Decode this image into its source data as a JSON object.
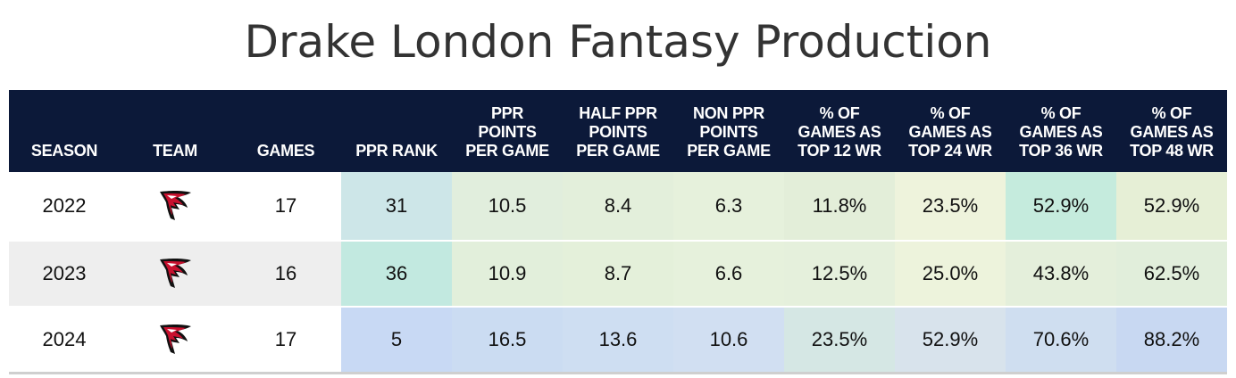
{
  "title": "Drake London Fantasy Production",
  "chart_data": {
    "type": "table",
    "title": "Drake London Fantasy Production",
    "columns": [
      "SEASON",
      "TEAM",
      "GAMES",
      "PPR RANK",
      "PPR POINTS PER GAME",
      "HALF PPR POINTS PER GAME",
      "NON PPR POINTS PER GAME",
      "% OF GAMES AS TOP 12 WR",
      "% OF GAMES AS TOP 24 WR",
      "% OF GAMES AS TOP 36 WR",
      "% OF GAMES AS TOP 48 WR"
    ],
    "rows": [
      {
        "season": "2022",
        "team_icon": "atlanta-falcons-logo-icon",
        "games": "17",
        "ppr_rank": "31",
        "ppr_ppg": "10.5",
        "half_ppr_ppg": "8.4",
        "non_ppr_ppg": "6.3",
        "top12": "11.8%",
        "top24": "23.5%",
        "top36": "52.9%",
        "top48": "52.9%"
      },
      {
        "season": "2023",
        "team_icon": "atlanta-falcons-logo-icon",
        "games": "16",
        "ppr_rank": "36",
        "ppr_ppg": "10.9",
        "half_ppr_ppg": "8.7",
        "non_ppr_ppg": "6.6",
        "top12": "12.5%",
        "top24": "25.0%",
        "top36": "43.8%",
        "top48": "62.5%"
      },
      {
        "season": "2024",
        "team_icon": "atlanta-falcons-logo-icon",
        "games": "17",
        "ppr_rank": "5",
        "ppr_ppg": "16.5",
        "half_ppr_ppg": "13.6",
        "non_ppr_ppg": "10.6",
        "top12": "23.5%",
        "top24": "52.9%",
        "top36": "70.6%",
        "top48": "88.2%"
      }
    ],
    "header_color": "#0c1939",
    "cell_colors": [
      [
        "#ffffff",
        "#ffffff",
        "#ffffff",
        "#cde6e8",
        "#e1eedd",
        "#e3efdb",
        "#e6f1dc",
        "#e3eed9",
        "#eef3dc",
        "#c5ebdd",
        "#e6efd6"
      ],
      [
        "#eeeeee",
        "#eeeeee",
        "#eeeeee",
        "#c2e9e0",
        "#e2efdb",
        "#e4f0da",
        "#e6f1dc",
        "#e5f0dc",
        "#edf3dc",
        "#e4efdb",
        "#e1eedb"
      ],
      [
        "#ffffff",
        "#ffffff",
        "#ffffff",
        "#c8d9f4",
        "#cbdcf2",
        "#cedef2",
        "#d1dff2",
        "#d5e7e4",
        "#d8e3ec",
        "#cfdef0",
        "#c8d8f2"
      ]
    ]
  }
}
